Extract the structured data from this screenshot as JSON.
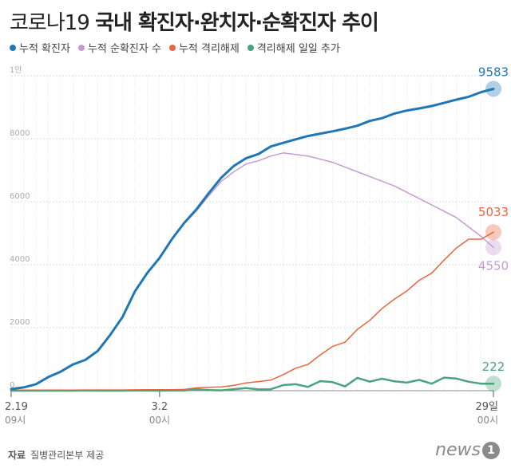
{
  "header": {
    "title_light": "코로나19 ",
    "title_bold": "국내 확진자·완치자·순확진자 추이"
  },
  "footer": {
    "source_label": "자료",
    "source_text": "질병관리본부 제공",
    "logo_text": "news",
    "logo_badge": "1"
  },
  "colors": {
    "confirmed": "#1f77b4",
    "active": "#c79ad1",
    "released": "#e8663d",
    "daily_released": "#4aa37c"
  },
  "chart_data": {
    "type": "line",
    "x_start_label": "2.19",
    "x_start_sublabel": "09시",
    "x_mid_label": "3.2",
    "x_mid_sublabel": "00시",
    "x_end_label": "29일",
    "x_end_sublabel": "00시",
    "x": [
      "2.19",
      "2.20",
      "2.21",
      "2.22",
      "2.23",
      "2.24",
      "2.25",
      "2.26",
      "2.27",
      "2.28",
      "2.29",
      "3.1",
      "3.2",
      "3.3",
      "3.4",
      "3.5",
      "3.6",
      "3.7",
      "3.8",
      "3.9",
      "3.10",
      "3.11",
      "3.12",
      "3.13",
      "3.14",
      "3.15",
      "3.16",
      "3.17",
      "3.18",
      "3.19",
      "3.20",
      "3.21",
      "3.22",
      "3.23",
      "3.24",
      "3.25",
      "3.26",
      "3.27",
      "3.28",
      "3.29"
    ],
    "ylim": [
      0,
      10000
    ],
    "yticks": [
      {
        "value": 0,
        "label": "0"
      },
      {
        "value": 2000,
        "label": "2000"
      },
      {
        "value": 4000,
        "label": "4000"
      },
      {
        "value": 6000,
        "label": "6000"
      },
      {
        "value": 8000,
        "label": "8000"
      },
      {
        "value": 10000,
        "label": "1만"
      }
    ],
    "grid": true,
    "legend_position": "top-left",
    "series": [
      {
        "name": "누적 확진자",
        "key": "confirmed",
        "values": [
          51,
          104,
          204,
          433,
          602,
          833,
          977,
          1261,
          1766,
          2337,
          3150,
          3736,
          4212,
          4812,
          5328,
          5766,
          6284,
          6767,
          7134,
          7382,
          7513,
          7755,
          7869,
          7979,
          8086,
          8162,
          8236,
          8320,
          8413,
          8565,
          8652,
          8799,
          8897,
          8961,
          9037,
          9137,
          9241,
          9332,
          9478,
          9583
        ],
        "end_label": "9583"
      },
      {
        "name": "누적 순확진자 수",
        "key": "active",
        "values": [
          51,
          104,
          204,
          433,
          602,
          833,
          977,
          1261,
          1766,
          2337,
          3150,
          3736,
          4212,
          4800,
          5300,
          5720,
          6200,
          6650,
          6950,
          7200,
          7300,
          7450,
          7550,
          7500,
          7450,
          7350,
          7250,
          7100,
          6950,
          6800,
          6650,
          6500,
          6300,
          6100,
          5900,
          5700,
          5500,
          5200,
          4900,
          4550
        ],
        "end_label": "4550"
      },
      {
        "name": "누적 격리해제",
        "key": "released",
        "values": [
          16,
          18,
          18,
          18,
          18,
          18,
          22,
          22,
          22,
          22,
          27,
          30,
          30,
          34,
          41,
          88,
          108,
          118,
          166,
          247,
          288,
          333,
          510,
          714,
          834,
          1137,
          1407,
          1540,
          1947,
          2233,
          2612,
          2909,
          3166,
          3507,
          3730,
          4144,
          4528,
          4811,
          4811,
          5033
        ],
        "end_label": "5033"
      },
      {
        "name": "격리해제 일일 추가",
        "key": "daily_released",
        "values": [
          0,
          0,
          0,
          0,
          0,
          0,
          4,
          0,
          0,
          0,
          5,
          3,
          0,
          4,
          7,
          47,
          20,
          10,
          48,
          81,
          41,
          45,
          177,
          204,
          120,
          303,
          270,
          133,
          407,
          286,
          379,
          297,
          257,
          341,
          223,
          414,
          384,
          283,
          223,
          222
        ],
        "end_label": "222"
      }
    ]
  }
}
